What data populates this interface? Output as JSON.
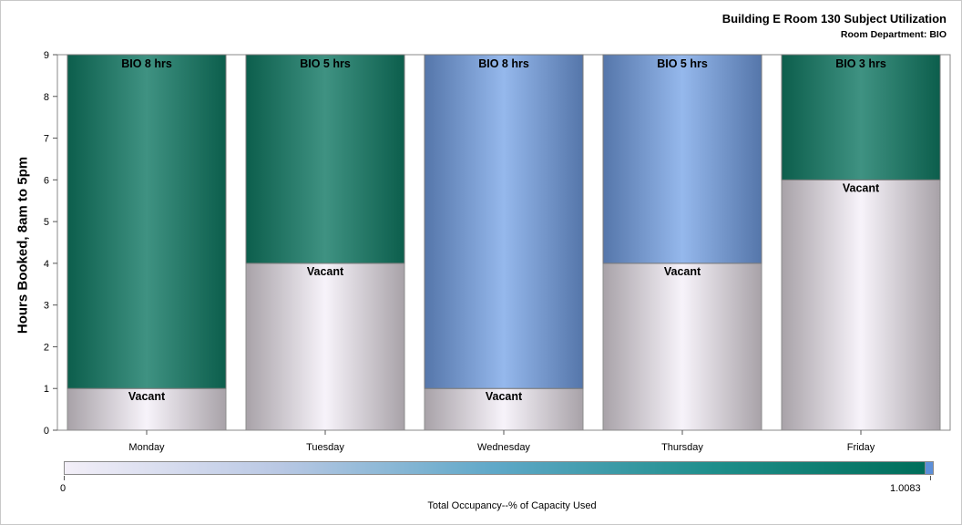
{
  "title": "Building E Room 130 Subject Utilization",
  "subtitle": "Room Department: BIO",
  "chart_data": {
    "type": "bar",
    "stacked": true,
    "ylabel": "Hours Booked, 8am to 5pm",
    "xlabel": "",
    "ylim": [
      0,
      9
    ],
    "yticks": [
      0,
      1,
      2,
      3,
      4,
      5,
      6,
      7,
      8,
      9
    ],
    "categories": [
      "Monday",
      "Tuesday",
      "Wednesday",
      "Thursday",
      "Friday"
    ],
    "bars": [
      {
        "category": "Monday",
        "booked_hours": 8,
        "booked_label": "BIO 8 hrs",
        "vacant_hours": 1,
        "vacant_label": "Vacant",
        "booked_color": "teal"
      },
      {
        "category": "Tuesday",
        "booked_hours": 5,
        "booked_label": "BIO 5 hrs",
        "vacant_hours": 4,
        "vacant_label": "Vacant",
        "booked_color": "teal"
      },
      {
        "category": "Wednesday",
        "booked_hours": 8,
        "booked_label": "BIO 8 hrs",
        "vacant_hours": 1,
        "vacant_label": "Vacant",
        "booked_color": "blue"
      },
      {
        "category": "Thursday",
        "booked_hours": 5,
        "booked_label": "BIO 5 hrs",
        "vacant_hours": 4,
        "vacant_label": "Vacant",
        "booked_color": "blue"
      },
      {
        "category": "Friday",
        "booked_hours": 3,
        "booked_label": "BIO 3 hrs",
        "vacant_hours": 6,
        "vacant_label": "Vacant",
        "booked_color": "teal"
      }
    ],
    "colors": {
      "teal_edge": "#0c5e4c",
      "teal_center": "#3f9282",
      "blue_edge": "#5576aa",
      "blue_center": "#95b8ec",
      "vacant_edge": "#a8a2a8",
      "vacant_center": "#f7f3fa"
    }
  },
  "colorbar": {
    "label": "Total Occupancy--% of Capacity Used",
    "min_label": "0",
    "max_label": "1.0083",
    "colors": [
      "#f3eff8",
      "#006e5a",
      "#5c8fd9"
    ]
  }
}
